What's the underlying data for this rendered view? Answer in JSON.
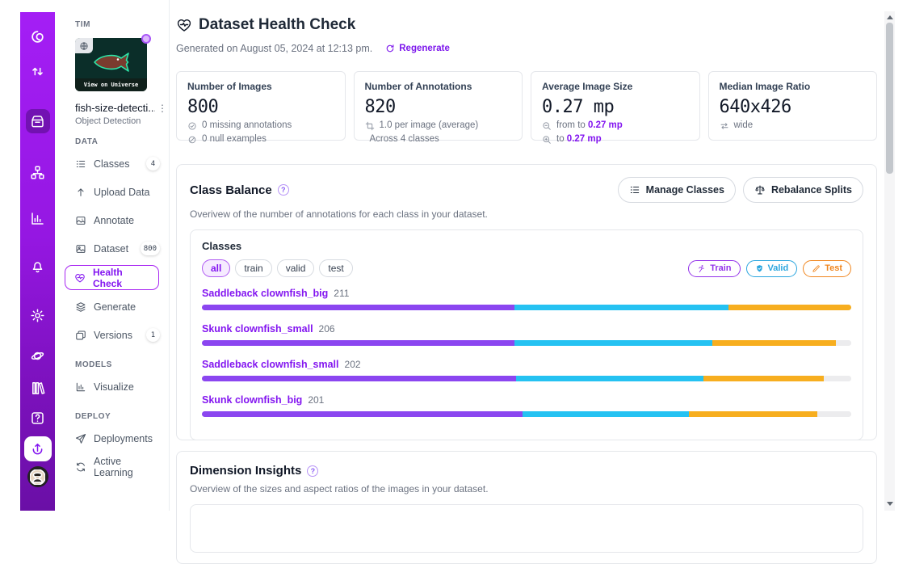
{
  "accent": "#8315F0",
  "glyphs": {
    "question": "?",
    "kebab": "⋮",
    "code": "</>"
  },
  "rail": {
    "top_icons": [
      {
        "name": "roboflow-logo"
      },
      {
        "name": "transfers"
      },
      {
        "name": "projects",
        "active": true
      },
      {
        "name": "workflows"
      },
      {
        "name": "analytics"
      },
      {
        "name": "notifications"
      },
      {
        "name": "settings"
      }
    ],
    "bottom_icons": [
      {
        "name": "universe"
      },
      {
        "name": "documentation"
      },
      {
        "name": "help"
      },
      {
        "name": "upload",
        "highlight": true
      },
      {
        "name": "avatar"
      }
    ]
  },
  "sidebar": {
    "workspace": "TIM",
    "thumbnail_caption": "View on Universe",
    "project_name": "fish-size-detecti...",
    "project_type": "Object Detection",
    "sections": [
      {
        "label": "DATA",
        "items": [
          {
            "icon": "list-ol",
            "label": "Classes",
            "badge": "4"
          },
          {
            "icon": "upload-arrow",
            "label": "Upload Data"
          },
          {
            "icon": "annotate",
            "label": "Annotate"
          },
          {
            "icon": "dataset",
            "label": "Dataset",
            "badge": "800"
          },
          {
            "icon": "heart-pulse",
            "label": "Health Check",
            "active": true
          },
          {
            "icon": "layers",
            "label": "Generate"
          },
          {
            "icon": "versions",
            "label": "Versions",
            "badge": "1"
          }
        ]
      },
      {
        "label": "MODELS",
        "items": [
          {
            "icon": "visualize",
            "label": "Visualize"
          }
        ]
      },
      {
        "label": "DEPLOY",
        "items": [
          {
            "icon": "deploy",
            "label": "Deployments"
          },
          {
            "icon": "active-learning",
            "label": "Active Learning"
          }
        ]
      }
    ]
  },
  "header": {
    "title": "Dataset Health Check",
    "generated": "Generated on August 05, 2024 at 12:13 pm.",
    "regenerate_label": "Regenerate"
  },
  "stats": [
    {
      "title": "Number of Images",
      "value": "800",
      "lines": [
        {
          "icon": "check-circle",
          "text": "0 missing annotations"
        },
        {
          "icon": "null-circle",
          "text": "0 null examples"
        }
      ]
    },
    {
      "title": "Number of Annotations",
      "value": "820",
      "lines": [
        {
          "icon": "crop",
          "text": "1.0 per image (average)"
        },
        {
          "icon": "code",
          "text": "Across 4 classes"
        }
      ]
    },
    {
      "title": "Average Image Size",
      "value": "0.27 mp",
      "lines": [
        {
          "icon": "zoom-out",
          "text": "from to",
          "highlight": "0.27 mp"
        },
        {
          "icon": "zoom-in",
          "text": "to",
          "highlight": "0.27 mp"
        }
      ]
    },
    {
      "title": "Median Image Ratio",
      "value": "640x426",
      "lines": [
        {
          "icon": "arrows-h",
          "text": "wide"
        }
      ]
    }
  ],
  "class_balance": {
    "title": "Class Balance",
    "subtitle": "Overivew of the number of annotations for each class in your dataset.",
    "manage_label": "Manage Classes",
    "rebalance_label": "Rebalance Splits",
    "panel_title": "Classes",
    "filters": [
      {
        "label": "all",
        "active": true
      },
      {
        "label": "train"
      },
      {
        "label": "valid"
      },
      {
        "label": "test"
      }
    ],
    "legend": [
      {
        "label": "Train",
        "icon": "runner",
        "color": "#9333EA"
      },
      {
        "label": "Valid",
        "icon": "shield-check",
        "color": "#2BA6DF"
      },
      {
        "label": "Test",
        "icon": "pencil",
        "color": "#F0861F"
      }
    ],
    "segment_colors": {
      "train": "#8B46F0",
      "valid": "#25C2F2",
      "test": "#F7AE1F",
      "remainder": "#ECECEE"
    },
    "rows": [
      {
        "name": "Saddleback clownfish_big",
        "count": 211,
        "train_pct": 48.1,
        "valid_pct": 33.0,
        "test_pct": 18.9
      },
      {
        "name": "Skunk clownfish_small",
        "count": 206,
        "train_pct": 48.1,
        "valid_pct": 30.5,
        "test_pct": 19.0
      },
      {
        "name": "Saddleback clownfish_small",
        "count": 202,
        "train_pct": 48.4,
        "valid_pct": 28.8,
        "test_pct": 18.6
      },
      {
        "name": "Skunk clownfish_big",
        "count": 201,
        "train_pct": 49.4,
        "valid_pct": 25.6,
        "test_pct": 19.8
      }
    ]
  },
  "dimension_insights": {
    "title": "Dimension Insights",
    "subtitle": "Overview of the sizes and aspect ratios of the images in your dataset."
  }
}
